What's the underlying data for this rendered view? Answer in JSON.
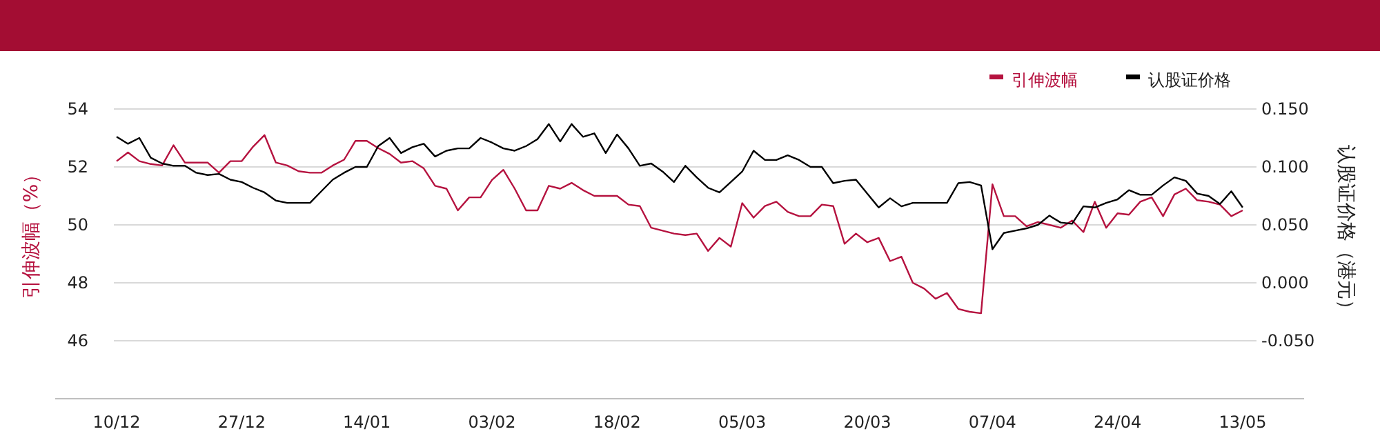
{
  "chart_data": {
    "type": "line",
    "categories": [
      "10/12",
      null,
      null,
      null,
      null,
      null,
      null,
      null,
      null,
      null,
      null,
      "27/12",
      null,
      null,
      null,
      null,
      null,
      null,
      null,
      null,
      null,
      null,
      "14/01",
      null,
      null,
      null,
      null,
      null,
      null,
      null,
      null,
      null,
      null,
      "03/02",
      null,
      null,
      null,
      null,
      null,
      null,
      null,
      null,
      null,
      null,
      "18/02",
      null,
      null,
      null,
      null,
      null,
      null,
      null,
      null,
      null,
      null,
      "05/03",
      null,
      null,
      null,
      null,
      null,
      null,
      null,
      null,
      null,
      null,
      "20/03",
      null,
      null,
      null,
      null,
      null,
      null,
      null,
      null,
      null,
      null,
      "07/04",
      null,
      null,
      null,
      null,
      null,
      null,
      null,
      null,
      null,
      null,
      "24/04",
      null,
      null,
      null,
      null,
      null,
      null,
      null,
      null,
      null,
      null,
      "13/05"
    ],
    "series": [
      {
        "name": "引伸波幅",
        "color": "#b5123f",
        "values": [
          52.2,
          52.5,
          52.2,
          52.1,
          52.05,
          52.75,
          52.15,
          52.15,
          52.15,
          51.8,
          52.2,
          52.2,
          52.7,
          53.1,
          52.15,
          52.05,
          51.85,
          51.8,
          51.8,
          52.05,
          52.25,
          52.9,
          52.9,
          52.65,
          52.45,
          52.15,
          52.2,
          51.95,
          51.35,
          51.25,
          50.5,
          50.95,
          50.95,
          51.55,
          51.9,
          51.25,
          50.5,
          50.5,
          51.35,
          51.25,
          51.45,
          51.2,
          51.0,
          51.0,
          51.0,
          50.7,
          50.65,
          49.9,
          49.8,
          49.7,
          49.65,
          49.7,
          49.1,
          49.55,
          49.25,
          50.75,
          50.25,
          50.65,
          50.8,
          50.45,
          50.3,
          50.3,
          50.7,
          50.65,
          49.35,
          49.7,
          49.4,
          49.55,
          48.75,
          48.9,
          48.0,
          47.8,
          47.45,
          47.65,
          47.1,
          47.0,
          46.95,
          51.4,
          50.3,
          50.3,
          49.95,
          50.1,
          50.0,
          49.9,
          50.15,
          49.75,
          50.8,
          49.9,
          50.4,
          50.35,
          50.8,
          50.95,
          50.3,
          51.05,
          51.25,
          50.85,
          50.8,
          50.7,
          50.3,
          50.5
        ]
      },
      {
        "name": "认股证价格",
        "color": "#000000",
        "axis": "y2",
        "values": [
          0.126,
          0.12,
          0.125,
          0.108,
          0.103,
          0.101,
          0.101,
          0.095,
          0.093,
          0.094,
          0.089,
          0.087,
          0.082,
          0.078,
          0.071,
          0.069,
          0.069,
          0.069,
          0.079,
          0.089,
          0.095,
          0.1,
          0.1,
          0.118,
          0.125,
          0.112,
          0.117,
          0.12,
          0.109,
          0.114,
          0.116,
          0.116,
          0.125,
          0.121,
          0.116,
          0.114,
          0.118,
          0.124,
          0.137,
          0.122,
          0.137,
          0.126,
          0.129,
          0.112,
          0.128,
          0.116,
          0.101,
          0.103,
          0.096,
          0.087,
          0.101,
          0.091,
          0.082,
          0.078,
          0.087,
          0.096,
          0.114,
          0.106,
          0.106,
          0.11,
          0.106,
          0.1,
          0.1,
          0.086,
          0.088,
          0.089,
          0.077,
          0.065,
          0.073,
          0.066,
          0.069,
          0.069,
          0.069,
          0.069,
          0.086,
          0.087,
          0.084,
          0.029,
          0.043,
          0.045,
          0.047,
          0.05,
          0.058,
          0.052,
          0.051,
          0.066,
          0.065,
          0.069,
          0.072,
          0.08,
          0.076,
          0.076,
          0.084,
          0.091,
          0.088,
          0.077,
          0.075,
          0.068,
          0.079,
          0.065
        ]
      }
    ],
    "ylabel": "引伸波幅（%）",
    "y2label": "认股证价格（港元）",
    "ylim": [
      44,
      54
    ],
    "yticks": [
      46,
      48,
      50,
      52,
      54
    ],
    "y2lim": [
      -0.1,
      0.15
    ],
    "y2ticks": [
      {
        "value": -0.05,
        "label": "-0.050"
      },
      {
        "value": 0,
        "label": "0.000"
      },
      {
        "value": 0.05,
        "label": "0.050"
      },
      {
        "value": 0.1,
        "label": "0.100"
      },
      {
        "value": 0.15,
        "label": "0.150"
      }
    ],
    "grid": "y",
    "legend": "top right",
    "marker": "none",
    "line_style": "solid"
  }
}
